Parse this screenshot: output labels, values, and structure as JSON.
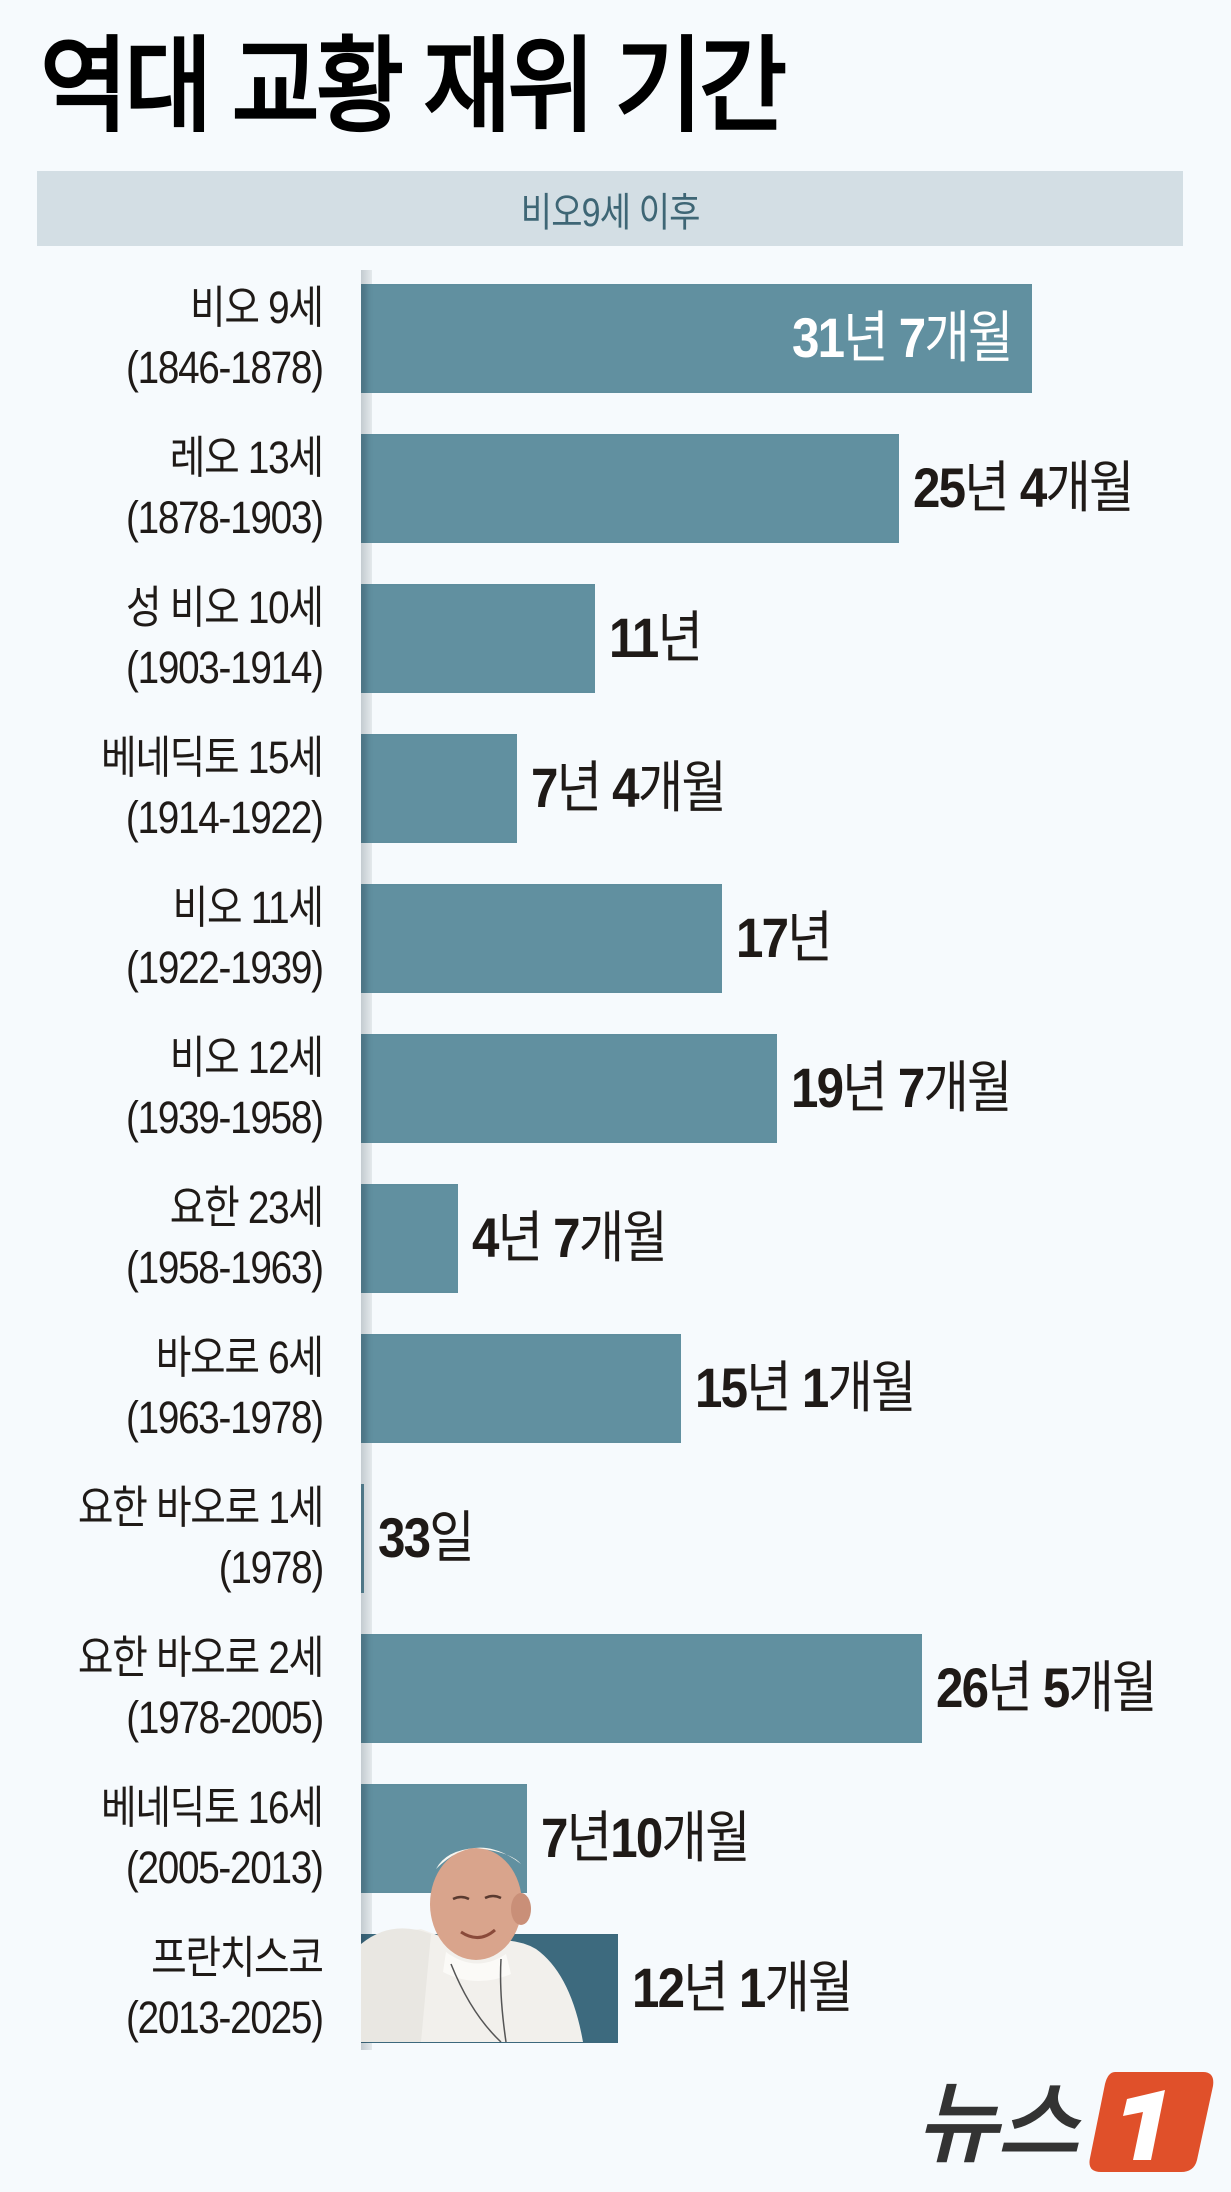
{
  "title": "역대 교황 재위 기간",
  "subtitle_band": "비오9세 이후",
  "colors": {
    "background": "#f6fafd",
    "band": "#d3dee4",
    "band_text": "#3e6675",
    "bar": "#6190a0",
    "bar_highlight": "#3d6a7e",
    "logo_orange": "#e0502a",
    "logo_text": "#333333"
  },
  "rows": [
    {
      "name": "비오 9세",
      "years": "(1846-1878)",
      "value_num1": "31",
      "value_unit1": "년 ",
      "value_num2": "7",
      "value_unit2": "개월",
      "months": 379,
      "label_inside": true
    },
    {
      "name": "레오 13세",
      "years": "(1878-1903)",
      "value_num1": "25",
      "value_unit1": "년 ",
      "value_num2": "4",
      "value_unit2": "개월",
      "months": 304
    },
    {
      "name": "성 비오 10세",
      "years": "(1903-1914)",
      "value_num1": "11",
      "value_unit1": "년",
      "value_num2": "",
      "value_unit2": "",
      "months": 132
    },
    {
      "name": "베네딕토 15세",
      "years": "(1914-1922)",
      "value_num1": "7",
      "value_unit1": "년 ",
      "value_num2": "4",
      "value_unit2": "개월",
      "months": 88
    },
    {
      "name": "비오 11세",
      "years": "(1922-1939)",
      "value_num1": "17",
      "value_unit1": "년",
      "value_num2": "",
      "value_unit2": "",
      "months": 204
    },
    {
      "name": "비오 12세",
      "years": "(1939-1958)",
      "value_num1": "19",
      "value_unit1": "년 ",
      "value_num2": "7",
      "value_unit2": "개월",
      "months": 235
    },
    {
      "name": "요한 23세",
      "years": "(1958-1963)",
      "value_num1": "4",
      "value_unit1": "년 ",
      "value_num2": "7",
      "value_unit2": "개월",
      "months": 55
    },
    {
      "name": "바오로 6세",
      "years": "(1963-1978)",
      "value_num1": "15",
      "value_unit1": "년 ",
      "value_num2": "1",
      "value_unit2": "개월",
      "months": 181
    },
    {
      "name": "요한 바오로 1세",
      "years": "(1978)",
      "value_num1": "33",
      "value_unit1": "일",
      "value_num2": "",
      "value_unit2": "",
      "months": 1.1
    },
    {
      "name": "요한 바오로 2세",
      "years": "(1978-2005)",
      "value_num1": "26",
      "value_unit1": "년 ",
      "value_num2": "5",
      "value_unit2": "개월",
      "months": 317
    },
    {
      "name": "베네딕토 16세",
      "years": "(2005-2013)",
      "value_num1": "7",
      "value_unit1": "년",
      "value_num2": "10",
      "value_unit2": "개월",
      "months": 94
    },
    {
      "name": "프란치스코",
      "years": "(2013-2025)",
      "value_num1": "12",
      "value_unit1": "년 ",
      "value_num2": "1",
      "value_unit2": "개월",
      "months": 145,
      "highlight": true
    }
  ],
  "photo": {
    "icon": "pope-francis-photo",
    "alt": "프란치스코 교황"
  },
  "logo": {
    "text": "뉴스",
    "mark": "1"
  },
  "chart_data": {
    "type": "bar",
    "orientation": "horizontal",
    "title": "역대 교황 재위 기간",
    "subtitle": "비오9세 이후",
    "xlabel": "",
    "ylabel": "",
    "unit": "months",
    "grid": false,
    "categories": [
      "비오 9세 (1846-1878)",
      "레오 13세 (1878-1903)",
      "성 비오 10세 (1903-1914)",
      "베네딕토 15세 (1914-1922)",
      "비오 11세 (1922-1939)",
      "비오 12세 (1939-1958)",
      "요한 23세 (1958-1963)",
      "바오로 6세 (1963-1978)",
      "요한 바오로 1세 (1978)",
      "요한 바오로 2세 (1978-2005)",
      "베네딕토 16세 (2005-2013)",
      "프란치스코 (2013-2025)"
    ],
    "values": [
      379,
      304,
      132,
      88,
      204,
      235,
      55,
      181,
      1.1,
      317,
      94,
      145
    ],
    "value_labels": [
      "31년 7개월",
      "25년 4개월",
      "11년",
      "7년 4개월",
      "17년",
      "19년 7개월",
      "4년 7개월",
      "15년 1개월",
      "33일",
      "26년 5개월",
      "7년10개월",
      "12년 1개월"
    ],
    "highlighted": "프란치스코 (2013-2025)"
  }
}
